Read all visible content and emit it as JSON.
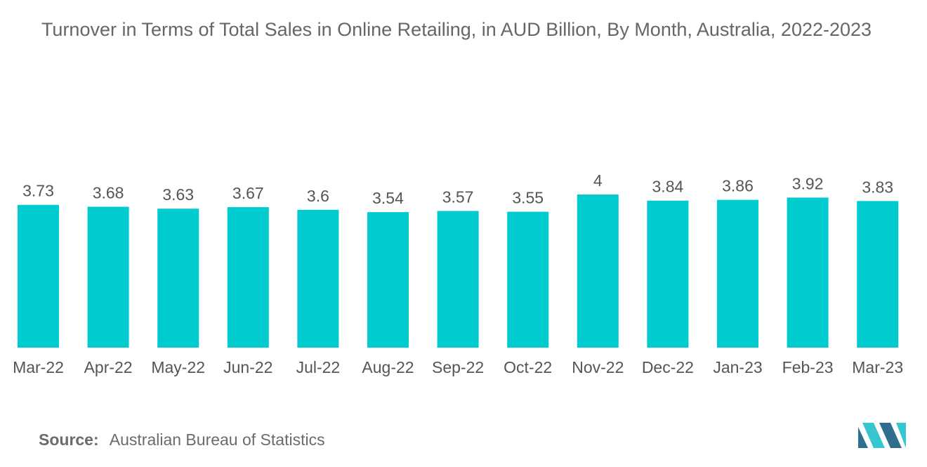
{
  "chart_data": {
    "type": "bar",
    "title": "Turnover in Terms of Total Sales in Online Retailing, in AUD Billion, By Month, Australia, 2022-2023",
    "categories": [
      "Mar-22",
      "Apr-22",
      "May-22",
      "Jun-22",
      "Jul-22",
      "Aug-22",
      "Sep-22",
      "Oct-22",
      "Nov-22",
      "Dec-22",
      "Jan-23",
      "Feb-23",
      "Mar-23"
    ],
    "values": [
      3.73,
      3.68,
      3.63,
      3.67,
      3.6,
      3.54,
      3.57,
      3.55,
      4,
      3.84,
      3.86,
      3.92,
      3.83
    ],
    "value_labels": [
      "3.73",
      "3.68",
      "3.63",
      "3.67",
      "3.6",
      "3.54",
      "3.57",
      "3.55",
      "4",
      "3.84",
      "3.86",
      "3.92",
      "3.83"
    ],
    "xlabel": "",
    "ylabel": "",
    "ylim": [
      0,
      4
    ],
    "grid": false,
    "legend": "none",
    "bar_color": "#00cccf"
  },
  "source": {
    "label": "Source:",
    "text": "Australian Bureau of Statistics"
  },
  "logo": {
    "icon": "mordor-intelligence-logo-icon",
    "colors": [
      "#2f6e8f",
      "#35c6cf"
    ]
  }
}
